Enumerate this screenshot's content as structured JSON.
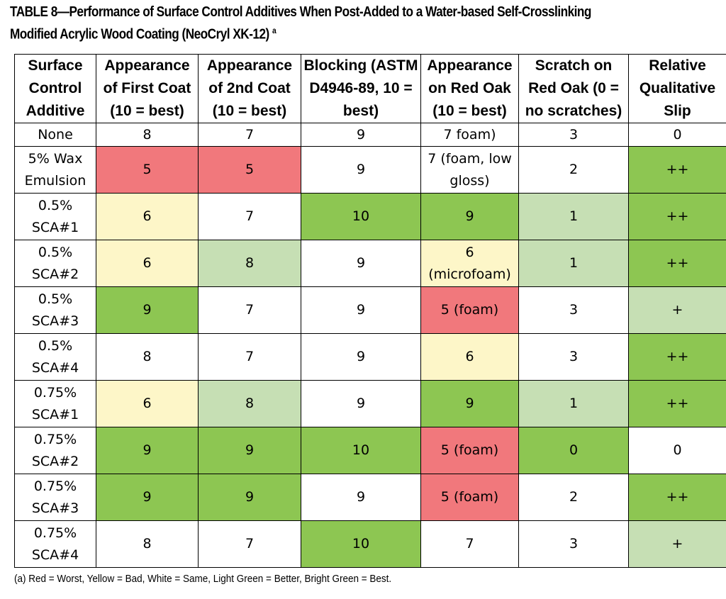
{
  "title": "TABLE 8—Performance of Surface Control Additives When Post-Added to a Water-based Self-Crosslinking Modified Acrylic Wood Coating (NeoCryl XK-12)",
  "title_sup": "a",
  "headers": [
    "Surface Control Additive",
    "Appearance of First Coat (10 = best)",
    "Appearance of 2nd Coat (10 = best)",
    "Blocking (ASTM D4946-89, 10 = best)",
    "Appearance on Red Oak (10 = best)",
    "Scratch on Red Oak (0 = no scratches)",
    "Relative Qualitative Slip"
  ],
  "rows": [
    {
      "additive": "None",
      "cells": [
        {
          "v": "8",
          "c": "white"
        },
        {
          "v": "7",
          "c": "white"
        },
        {
          "v": "9",
          "c": "white"
        },
        {
          "v": "7 foam)",
          "c": "white"
        },
        {
          "v": "3",
          "c": "white"
        },
        {
          "v": "0",
          "c": "white"
        }
      ]
    },
    {
      "additive": "5% Wax Emulsion",
      "cells": [
        {
          "v": "5",
          "c": "red"
        },
        {
          "v": "5",
          "c": "red"
        },
        {
          "v": "9",
          "c": "white"
        },
        {
          "v": "7 (foam, low gloss)",
          "c": "white"
        },
        {
          "v": "2",
          "c": "white"
        },
        {
          "v": "++",
          "c": "bright-green"
        }
      ]
    },
    {
      "additive": "0.5% SCA#1",
      "cells": [
        {
          "v": "6",
          "c": "yellow"
        },
        {
          "v": "7",
          "c": "white"
        },
        {
          "v": "10",
          "c": "bright-green"
        },
        {
          "v": "9",
          "c": "bright-green"
        },
        {
          "v": "1",
          "c": "light-green"
        },
        {
          "v": "++",
          "c": "bright-green"
        }
      ]
    },
    {
      "additive": "0.5% SCA#2",
      "cells": [
        {
          "v": "6",
          "c": "yellow"
        },
        {
          "v": "8",
          "c": "light-green"
        },
        {
          "v": "9",
          "c": "white"
        },
        {
          "v": "6 (microfoam)",
          "c": "yellow"
        },
        {
          "v": "1",
          "c": "light-green"
        },
        {
          "v": "++",
          "c": "bright-green"
        }
      ]
    },
    {
      "additive": "0.5% SCA#3",
      "cells": [
        {
          "v": "9",
          "c": "bright-green"
        },
        {
          "v": "7",
          "c": "white"
        },
        {
          "v": "9",
          "c": "white"
        },
        {
          "v": "5 (foam)",
          "c": "red"
        },
        {
          "v": "3",
          "c": "white"
        },
        {
          "v": "+",
          "c": "light-green"
        }
      ]
    },
    {
      "additive": "0.5% SCA#4",
      "cells": [
        {
          "v": "8",
          "c": "white"
        },
        {
          "v": "7",
          "c": "white"
        },
        {
          "v": "9",
          "c": "white"
        },
        {
          "v": "6",
          "c": "yellow"
        },
        {
          "v": "3",
          "c": "white"
        },
        {
          "v": "++",
          "c": "bright-green"
        }
      ]
    },
    {
      "additive": "0.75% SCA#1",
      "cells": [
        {
          "v": "6",
          "c": "yellow"
        },
        {
          "v": "8",
          "c": "light-green"
        },
        {
          "v": "9",
          "c": "white"
        },
        {
          "v": "9",
          "c": "bright-green"
        },
        {
          "v": "1",
          "c": "light-green"
        },
        {
          "v": "++",
          "c": "bright-green"
        }
      ]
    },
    {
      "additive": "0.75% SCA#2",
      "cells": [
        {
          "v": "9",
          "c": "bright-green"
        },
        {
          "v": "9",
          "c": "bright-green"
        },
        {
          "v": "10",
          "c": "bright-green"
        },
        {
          "v": "5 (foam)",
          "c": "red"
        },
        {
          "v": "0",
          "c": "bright-green"
        },
        {
          "v": "0",
          "c": "white"
        }
      ]
    },
    {
      "additive": "0.75% SCA#3",
      "cells": [
        {
          "v": "9",
          "c": "bright-green"
        },
        {
          "v": "9",
          "c": "bright-green"
        },
        {
          "v": "9",
          "c": "white"
        },
        {
          "v": "5 (foam)",
          "c": "red"
        },
        {
          "v": "2",
          "c": "white"
        },
        {
          "v": "++",
          "c": "bright-green"
        }
      ]
    },
    {
      "additive": "0.75% SCA#4",
      "cells": [
        {
          "v": "8",
          "c": "white"
        },
        {
          "v": "7",
          "c": "white"
        },
        {
          "v": "10",
          "c": "bright-green"
        },
        {
          "v": "7",
          "c": "white"
        },
        {
          "v": "3",
          "c": "white"
        },
        {
          "v": "+",
          "c": "light-green"
        }
      ]
    }
  ],
  "colors": {
    "red": "#f1787c",
    "yellow": "#fdf6c8",
    "white": "#ffffff",
    "light-green": "#c6dfb4",
    "bright-green": "#8dc652"
  },
  "footnote": "(a) Red = Worst, Yellow = Bad, White = Same, Light Green = Better, Bright Green = Best."
}
